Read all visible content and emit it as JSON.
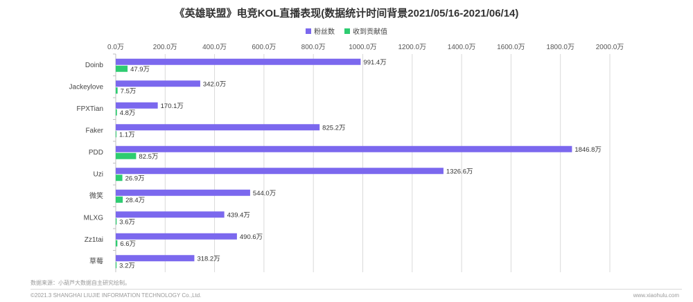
{
  "title": "《英雄联盟》电竞KOL直播表现(数据统计时间背景2021/05/16-2021/06/14)",
  "source_note": "数据来源：小葫芦大数据自主研究绘制。",
  "copyright": "©2021.3 SHANGHAI LIUJIE INFORMATION TECHNOLOGY Co.,Ltd.",
  "website": "www.xiaohulu.com",
  "chart_data": {
    "type": "bar",
    "orientation": "horizontal",
    "title": "《英雄联盟》电竞KOL直播表现(数据统计时间背景2021/05/16-2021/06/14)",
    "categories": [
      "Doinb",
      "Jackeylove",
      "FPXTian",
      "Faker",
      "PDD",
      "Uzi",
      "微笑",
      "MLXG",
      "Zz1tai",
      "草莓"
    ],
    "series": [
      {
        "name": "粉丝数",
        "color": "#7b68ee",
        "values": [
          991.4,
          342.0,
          170.1,
          825.2,
          1846.8,
          1326.6,
          544.0,
          439.4,
          490.6,
          318.2
        ]
      },
      {
        "name": "收到贡献值",
        "color": "#2ecc71",
        "values": [
          47.9,
          7.5,
          4.8,
          1.1,
          82.5,
          26.9,
          28.4,
          3.6,
          6.6,
          3.2
        ]
      }
    ],
    "value_labels": [
      [
        "991.4万",
        "342.0万",
        "170.1万",
        "825.2万",
        "1846.8万",
        "1326.6万",
        "544.0万",
        "439.4万",
        "490.6万",
        "318.2万"
      ],
      [
        "47.9万",
        "7.5万",
        "4.8万",
        "1.1万",
        "82.5万",
        "26.9万",
        "28.4万",
        "3.6万",
        "6.6万",
        "3.2万"
      ]
    ],
    "xlim": [
      0,
      2000
    ],
    "xticks": [
      0,
      200,
      400,
      600,
      800,
      1000,
      1200,
      1400,
      1600,
      1800,
      2000
    ],
    "xtick_labels": [
      "0.0万",
      "200.0万",
      "400.0万",
      "600.0万",
      "800.0万",
      "1000.0万",
      "1200.0万",
      "1400.0万",
      "1600.0万",
      "1800.0万",
      "2000.0万"
    ],
    "axis_position": "top",
    "grid": true,
    "legend": "top-center"
  }
}
